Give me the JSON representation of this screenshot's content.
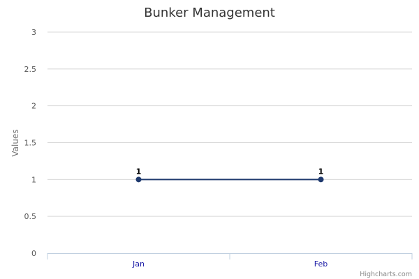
{
  "chart_data": {
    "type": "line",
    "title": "Bunker Management",
    "ylabel": "Values",
    "xlabel": "",
    "categories": [
      "Jan",
      "Feb"
    ],
    "series": [
      {
        "values": [
          1,
          1
        ],
        "data_labels": [
          "1",
          "1"
        ]
      }
    ],
    "ylim": [
      0,
      3
    ],
    "yticks": [
      0,
      0.5,
      1,
      1.5,
      2,
      2.5,
      3
    ],
    "ytick_labels": [
      "0",
      "0.5",
      "1",
      "1.5",
      "2",
      "2.5",
      "3"
    ],
    "grid": true,
    "legend": "none",
    "colors": {
      "series": "#1f3a6e",
      "grid": "#d8d8d8",
      "axis": "#c0d0e0",
      "xtick": "#1a1aa6"
    }
  },
  "credit": "Highcharts.com"
}
